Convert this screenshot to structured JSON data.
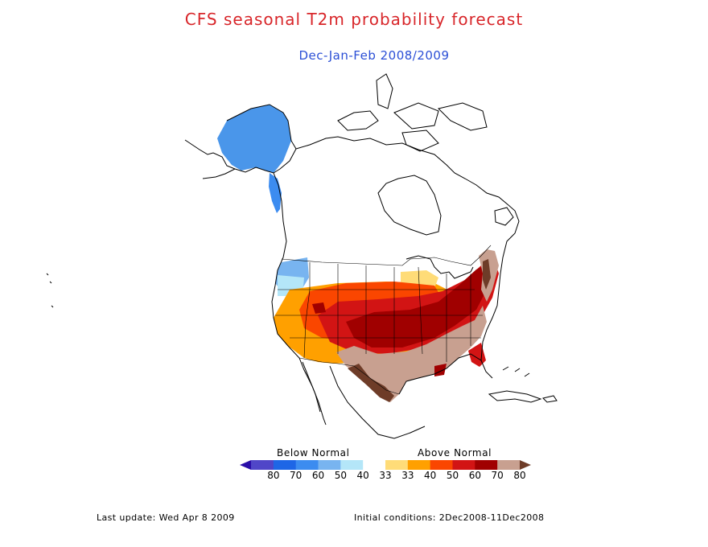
{
  "title": "CFS seasonal T2m probability forecast",
  "subtitle": "Dec-Jan-Feb 2008/2009",
  "colors": {
    "title": "#d8262a",
    "subtitle": "#2b4fd6",
    "outline": "#000000",
    "land": "#ffffff"
  },
  "legend": {
    "below_label": "Below Normal",
    "above_label": "Above Normal",
    "ticks": [
      "80",
      "70",
      "60",
      "50",
      "40",
      "33",
      "33",
      "40",
      "50",
      "60",
      "70",
      "80"
    ],
    "bins": [
      {
        "color": "#2a0ea8",
        "meaning": "below 80+"
      },
      {
        "color": "#5046c8",
        "meaning": "below 70-80"
      },
      {
        "color": "#1e66e6",
        "meaning": "below 60-70"
      },
      {
        "color": "#3c8cf0",
        "meaning": "below 50-60"
      },
      {
        "color": "#78b4f0",
        "meaning": "below 40-50"
      },
      {
        "color": "#b4e6f8",
        "meaning": "below 33-40"
      },
      {
        "color": "#ffffff",
        "meaning": "normal"
      },
      {
        "color": "#ffdc78",
        "meaning": "above 33-40"
      },
      {
        "color": "#ffa000",
        "meaning": "above 40-50"
      },
      {
        "color": "#fa4600",
        "meaning": "above 50-60"
      },
      {
        "color": "#d21414",
        "meaning": "above 60-70"
      },
      {
        "color": "#a00000",
        "meaning": "above 70-80"
      },
      {
        "color": "#c8a090",
        "meaning": "above 80"
      },
      {
        "color": "#6e3c28",
        "meaning": "above 80+"
      }
    ]
  },
  "footer": {
    "last_update": "Last update: Wed Apr 8 2009",
    "initial_conditions": "Initial conditions: 2Dec2008-11Dec2008"
  }
}
